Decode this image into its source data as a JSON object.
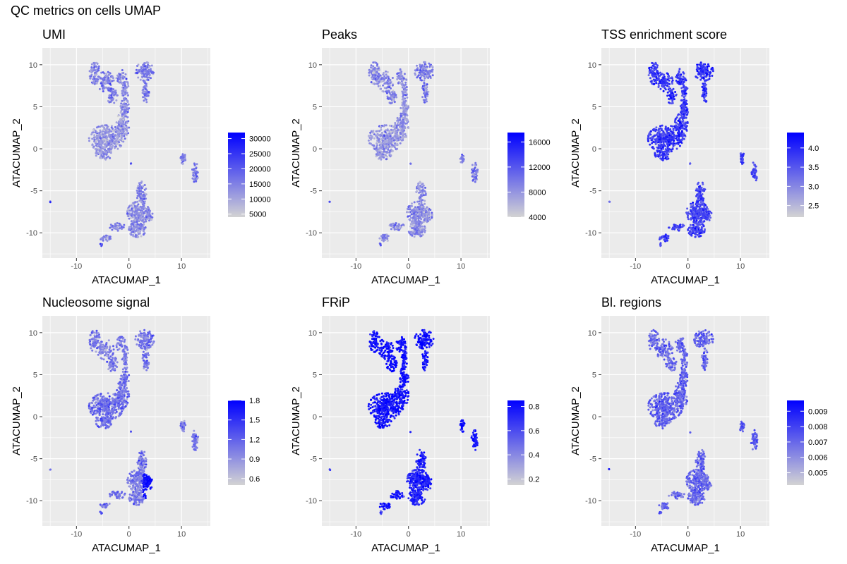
{
  "figure_title": "QC metrics on cells UMAP",
  "colors": {
    "low": "#d3d3d3",
    "high": "#0000ff",
    "panel_bg": "#ebebeb",
    "grid": "#ffffff"
  },
  "chart_data": [
    {
      "type": "scatter",
      "title": "UMI",
      "xlabel": "ATACUMAP_1",
      "ylabel": "ATACUMAP_2",
      "xlim": [
        -16.5,
        15.5
      ],
      "ylim": [
        -13,
        12
      ],
      "xticks": [
        -10,
        0,
        10
      ],
      "xtick_labels": [
        "-10",
        "0",
        "10"
      ],
      "yticks": [
        -10,
        -5,
        0,
        5,
        10
      ],
      "ytick_labels": [
        "-10",
        "-5",
        "0",
        "5",
        "10"
      ],
      "legend": {
        "min": 4000,
        "max": 32000,
        "ticks": [
          5000,
          10000,
          15000,
          20000,
          25000,
          30000
        ],
        "tick_labels": [
          "5000",
          "10000",
          "15000",
          "20000",
          "25000",
          "30000"
        ]
      },
      "cluster_intensity": {
        "top_left": 0.38,
        "top_right": 0.42,
        "middle_left": 0.3,
        "bottom": 0.35,
        "right_small": 0.45,
        "outlier": 0.6
      }
    },
    {
      "type": "scatter",
      "title": "Peaks",
      "xlabel": "ATACUMAP_1",
      "ylabel": "ATACUMAP_2",
      "xlim": [
        -16.5,
        15.5
      ],
      "ylim": [
        -13,
        12
      ],
      "xticks": [
        -10,
        0,
        10
      ],
      "xtick_labels": [
        "-10",
        "0",
        "10"
      ],
      "yticks": [
        -10,
        -5,
        0,
        5,
        10
      ],
      "ytick_labels": [
        "-10",
        "-5",
        "0",
        "5",
        "10"
      ],
      "legend": {
        "min": 4000,
        "max": 17500,
        "ticks": [
          4000,
          8000,
          12000,
          16000
        ],
        "tick_labels": [
          "4000",
          "8000",
          "12000",
          "16000"
        ]
      },
      "cluster_intensity": {
        "top_left": 0.36,
        "top_right": 0.4,
        "middle_left": 0.28,
        "bottom": 0.33,
        "right_small": 0.42,
        "outlier": 0.6
      }
    },
    {
      "type": "scatter",
      "title": "TSS enrichment score",
      "xlabel": "ATACUMAP_1",
      "ylabel": "ATACUMAP_2",
      "xlim": [
        -16.5,
        15.5
      ],
      "ylim": [
        -13,
        12
      ],
      "xticks": [
        -10,
        0,
        10
      ],
      "xtick_labels": [
        "-10",
        "0",
        "10"
      ],
      "yticks": [
        -10,
        -5,
        0,
        5,
        10
      ],
      "ytick_labels": [
        "-10",
        "-5",
        "0",
        "5",
        "10"
      ],
      "legend": {
        "min": 2.2,
        "max": 4.4,
        "ticks": [
          2.5,
          3.0,
          3.5,
          4.0
        ],
        "tick_labels": [
          "2.5",
          "3.0",
          "3.5",
          "4.0"
        ]
      },
      "cluster_intensity": {
        "top_left": 0.75,
        "top_right": 0.78,
        "middle_left": 0.74,
        "bottom": 0.7,
        "right_small": 0.74,
        "outlier": 0.6
      }
    },
    {
      "type": "scatter",
      "title": "Nucleosome signal",
      "xlabel": "ATACUMAP_1",
      "ylabel": "ATACUMAP_2",
      "xlim": [
        -16.5,
        15.5
      ],
      "ylim": [
        -13,
        12
      ],
      "xticks": [
        -10,
        0,
        10
      ],
      "xtick_labels": [
        "-10",
        "0",
        "10"
      ],
      "yticks": [
        -10,
        -5,
        0,
        5,
        10
      ],
      "ytick_labels": [
        "-10",
        "-5",
        "0",
        "5",
        "10"
      ],
      "legend": {
        "min": 0.5,
        "max": 1.8,
        "ticks": [
          0.6,
          0.9,
          1.2,
          1.5,
          1.8
        ],
        "tick_labels": [
          "0.6",
          "0.9",
          "1.2",
          "1.5",
          "1.8"
        ]
      },
      "cluster_intensity": {
        "top_left": 0.42,
        "top_right": 0.45,
        "middle_left": 0.48,
        "bottom": 0.42,
        "right_small": 0.45,
        "outlier": 0.55
      }
    },
    {
      "type": "scatter",
      "title": "FRiP",
      "xlabel": "ATACUMAP_1",
      "ylabel": "ATACUMAP_2",
      "xlim": [
        -16.5,
        15.5
      ],
      "ylim": [
        -13,
        12
      ],
      "xticks": [
        -10,
        0,
        10
      ],
      "xtick_labels": [
        "-10",
        "0",
        "10"
      ],
      "yticks": [
        -10,
        -5,
        0,
        5,
        10
      ],
      "ytick_labels": [
        "-10",
        "-5",
        "0",
        "5",
        "10"
      ],
      "legend": {
        "min": 0.15,
        "max": 0.85,
        "ticks": [
          0.2,
          0.4,
          0.6,
          0.8
        ],
        "tick_labels": [
          "0.2",
          "0.4",
          "0.6",
          "0.8"
        ]
      },
      "cluster_intensity": {
        "top_left": 0.93,
        "top_right": 0.95,
        "middle_left": 0.93,
        "bottom": 0.86,
        "right_small": 0.9,
        "outlier": 0.7
      }
    },
    {
      "type": "scatter",
      "title": "Bl. regions",
      "xlabel": "ATACUMAP_1",
      "ylabel": "ATACUMAP_2",
      "xlim": [
        -16.5,
        15.5
      ],
      "ylim": [
        -13,
        12
      ],
      "xticks": [
        -10,
        0,
        10
      ],
      "xtick_labels": [
        "-10",
        "0",
        "10"
      ],
      "yticks": [
        -10,
        -5,
        0,
        5,
        10
      ],
      "ytick_labels": [
        "-10",
        "-5",
        "0",
        "5",
        "10"
      ],
      "legend": {
        "min": 0.0042,
        "max": 0.0097,
        "ticks": [
          0.005,
          0.006,
          0.007,
          0.008,
          0.009
        ],
        "tick_labels": [
          "0.005",
          "0.006",
          "0.007",
          "0.008",
          "0.009"
        ]
      },
      "cluster_intensity": {
        "top_left": 0.5,
        "top_right": 0.52,
        "middle_left": 0.55,
        "bottom": 0.5,
        "right_small": 0.6,
        "outlier": 0.6
      }
    }
  ]
}
